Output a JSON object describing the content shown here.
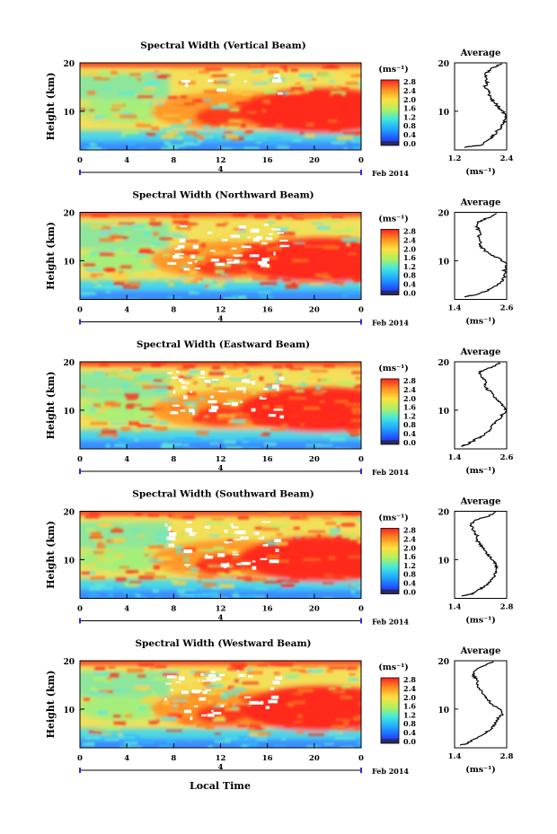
{
  "xlabel": "Local Time",
  "date_label": "Feb 2014",
  "day_label": "4",
  "chart_data": [
    {
      "type": "heatmap",
      "title": "Spectral Width (Vertical Beam)",
      "ylabel": "Height (km)",
      "x_ticks": [
        "0",
        "4",
        "8",
        "12",
        "16",
        "20",
        "0"
      ],
      "y_ticks": [
        "20",
        "10"
      ],
      "xlim": [
        0,
        24
      ],
      "ylim": [
        2,
        20
      ],
      "colorbar": {
        "unit": "(ms⁻¹)",
        "ticks": [
          "2.8",
          "2.4",
          "2.0",
          "1.6",
          "1.2",
          "0.8",
          "0.4",
          "0.0"
        ],
        "range": [
          0,
          2.8
        ]
      },
      "profile": {
        "title": "Average",
        "xlabel": "(ms⁻¹)",
        "x_ticks": [
          "1.2",
          "2.4"
        ],
        "xlim": [
          1.2,
          2.4
        ],
        "y": [
          2.5,
          3,
          4,
          5,
          6,
          7,
          8,
          9,
          10,
          11,
          12,
          13,
          14,
          15,
          16,
          17,
          18,
          19,
          20
        ],
        "x": [
          1.4,
          1.8,
          2.0,
          2.1,
          2.2,
          2.3,
          2.35,
          2.4,
          2.3,
          2.2,
          2.1,
          2.0,
          2.0,
          1.9,
          1.95,
          1.9,
          1.95,
          2.1,
          2.3
        ]
      }
    },
    {
      "type": "heatmap",
      "title": "Spectral Width (Northward Beam)",
      "ylabel": "Height (km)",
      "x_ticks": [
        "0",
        "4",
        "8",
        "12",
        "16",
        "20",
        "0"
      ],
      "y_ticks": [
        "20",
        "10"
      ],
      "xlim": [
        0,
        24
      ],
      "ylim": [
        2,
        20
      ],
      "colorbar": {
        "unit": "(ms⁻¹)",
        "ticks": [
          "2.8",
          "2.4",
          "2.0",
          "1.6",
          "1.2",
          "0.8",
          "0.4",
          "0.0"
        ],
        "range": [
          0,
          2.8
        ]
      },
      "profile": {
        "title": "Average",
        "xlabel": "(ms⁻¹)",
        "x_ticks": [
          "1.4",
          "2.6"
        ],
        "xlim": [
          1.4,
          2.6
        ],
        "y": [
          2.5,
          3,
          4,
          5,
          6,
          7,
          8,
          9,
          10,
          11,
          12,
          13,
          14,
          15,
          16,
          17,
          18,
          19,
          20
        ],
        "x": [
          1.6,
          1.9,
          2.2,
          2.4,
          2.5,
          2.55,
          2.55,
          2.6,
          2.5,
          2.3,
          2.1,
          2.0,
          2.0,
          1.95,
          2.0,
          1.9,
          1.95,
          2.2,
          2.4
        ]
      }
    },
    {
      "type": "heatmap",
      "title": "Spectral Width (Eastward Beam)",
      "ylabel": "Height (km)",
      "x_ticks": [
        "0",
        "4",
        "8",
        "12",
        "16",
        "20",
        "0"
      ],
      "y_ticks": [
        "20",
        "10"
      ],
      "xlim": [
        0,
        24
      ],
      "ylim": [
        2,
        20
      ],
      "colorbar": {
        "unit": "(ms⁻¹)",
        "ticks": [
          "2.8",
          "2.4",
          "2.0",
          "1.6",
          "1.2",
          "0.8",
          "0.4",
          "0.0"
        ],
        "range": [
          0,
          2.8
        ]
      },
      "profile": {
        "title": "Average",
        "xlabel": "(ms⁻¹)",
        "x_ticks": [
          "1.4",
          "2.6"
        ],
        "xlim": [
          1.4,
          2.6
        ],
        "y": [
          2.5,
          3,
          4,
          5,
          6,
          7,
          8,
          9,
          10,
          11,
          12,
          13,
          14,
          15,
          16,
          17,
          18,
          19,
          20
        ],
        "x": [
          1.55,
          1.7,
          1.9,
          2.1,
          2.2,
          2.3,
          2.4,
          2.5,
          2.6,
          2.5,
          2.4,
          2.3,
          2.2,
          2.1,
          2.1,
          2.0,
          2.0,
          2.3,
          2.45
        ]
      }
    },
    {
      "type": "heatmap",
      "title": "Spectral Width (Southward Beam)",
      "ylabel": "Height (km)",
      "x_ticks": [
        "0",
        "4",
        "8",
        "12",
        "16",
        "20",
        "0"
      ],
      "y_ticks": [
        "20",
        "10"
      ],
      "xlim": [
        0,
        24
      ],
      "ylim": [
        2,
        20
      ],
      "colorbar": {
        "unit": "(ms⁻¹)",
        "ticks": [
          "2.8",
          "2.4",
          "2.0",
          "1.6",
          "1.2",
          "0.8",
          "0.4",
          "0.0"
        ],
        "range": [
          0,
          2.8
        ]
      },
      "profile": {
        "title": "Average",
        "xlabel": "(ms⁻¹)",
        "x_ticks": [
          "1.4",
          "2.8"
        ],
        "xlim": [
          1.4,
          2.8
        ],
        "y": [
          2.5,
          3,
          4,
          5,
          6,
          7,
          8,
          9,
          10,
          11,
          12,
          13,
          14,
          15,
          16,
          17,
          18,
          19,
          20
        ],
        "x": [
          1.6,
          1.9,
          2.1,
          2.3,
          2.4,
          2.5,
          2.55,
          2.5,
          2.4,
          2.3,
          2.2,
          2.1,
          2.0,
          2.0,
          1.9,
          1.85,
          1.9,
          2.3,
          2.55
        ]
      }
    },
    {
      "type": "heatmap",
      "title": "Spectral Width (Westward Beam)",
      "ylabel": "Height (km)",
      "x_ticks": [
        "0",
        "4",
        "8",
        "12",
        "16",
        "20",
        "0"
      ],
      "y_ticks": [
        "20",
        "10"
      ],
      "xlim": [
        0,
        24
      ],
      "ylim": [
        2,
        20
      ],
      "colorbar": {
        "unit": "(ms⁻¹)",
        "ticks": [
          "2.8",
          "2.4",
          "2.0",
          "1.6",
          "1.2",
          "0.8",
          "0.4",
          "0.0"
        ],
        "range": [
          0,
          2.8
        ]
      },
      "profile": {
        "title": "Average",
        "xlabel": "(ms⁻¹)",
        "x_ticks": [
          "1.4",
          "2.8"
        ],
        "xlim": [
          1.4,
          2.8
        ],
        "y": [
          2.5,
          3,
          4,
          5,
          6,
          7,
          8,
          9,
          10,
          11,
          12,
          13,
          14,
          15,
          16,
          17,
          18,
          19,
          20
        ],
        "x": [
          1.55,
          1.75,
          2.0,
          2.2,
          2.4,
          2.5,
          2.55,
          2.7,
          2.6,
          2.4,
          2.3,
          2.2,
          2.1,
          2.0,
          2.0,
          1.9,
          1.95,
          2.2,
          2.5
        ]
      }
    }
  ]
}
